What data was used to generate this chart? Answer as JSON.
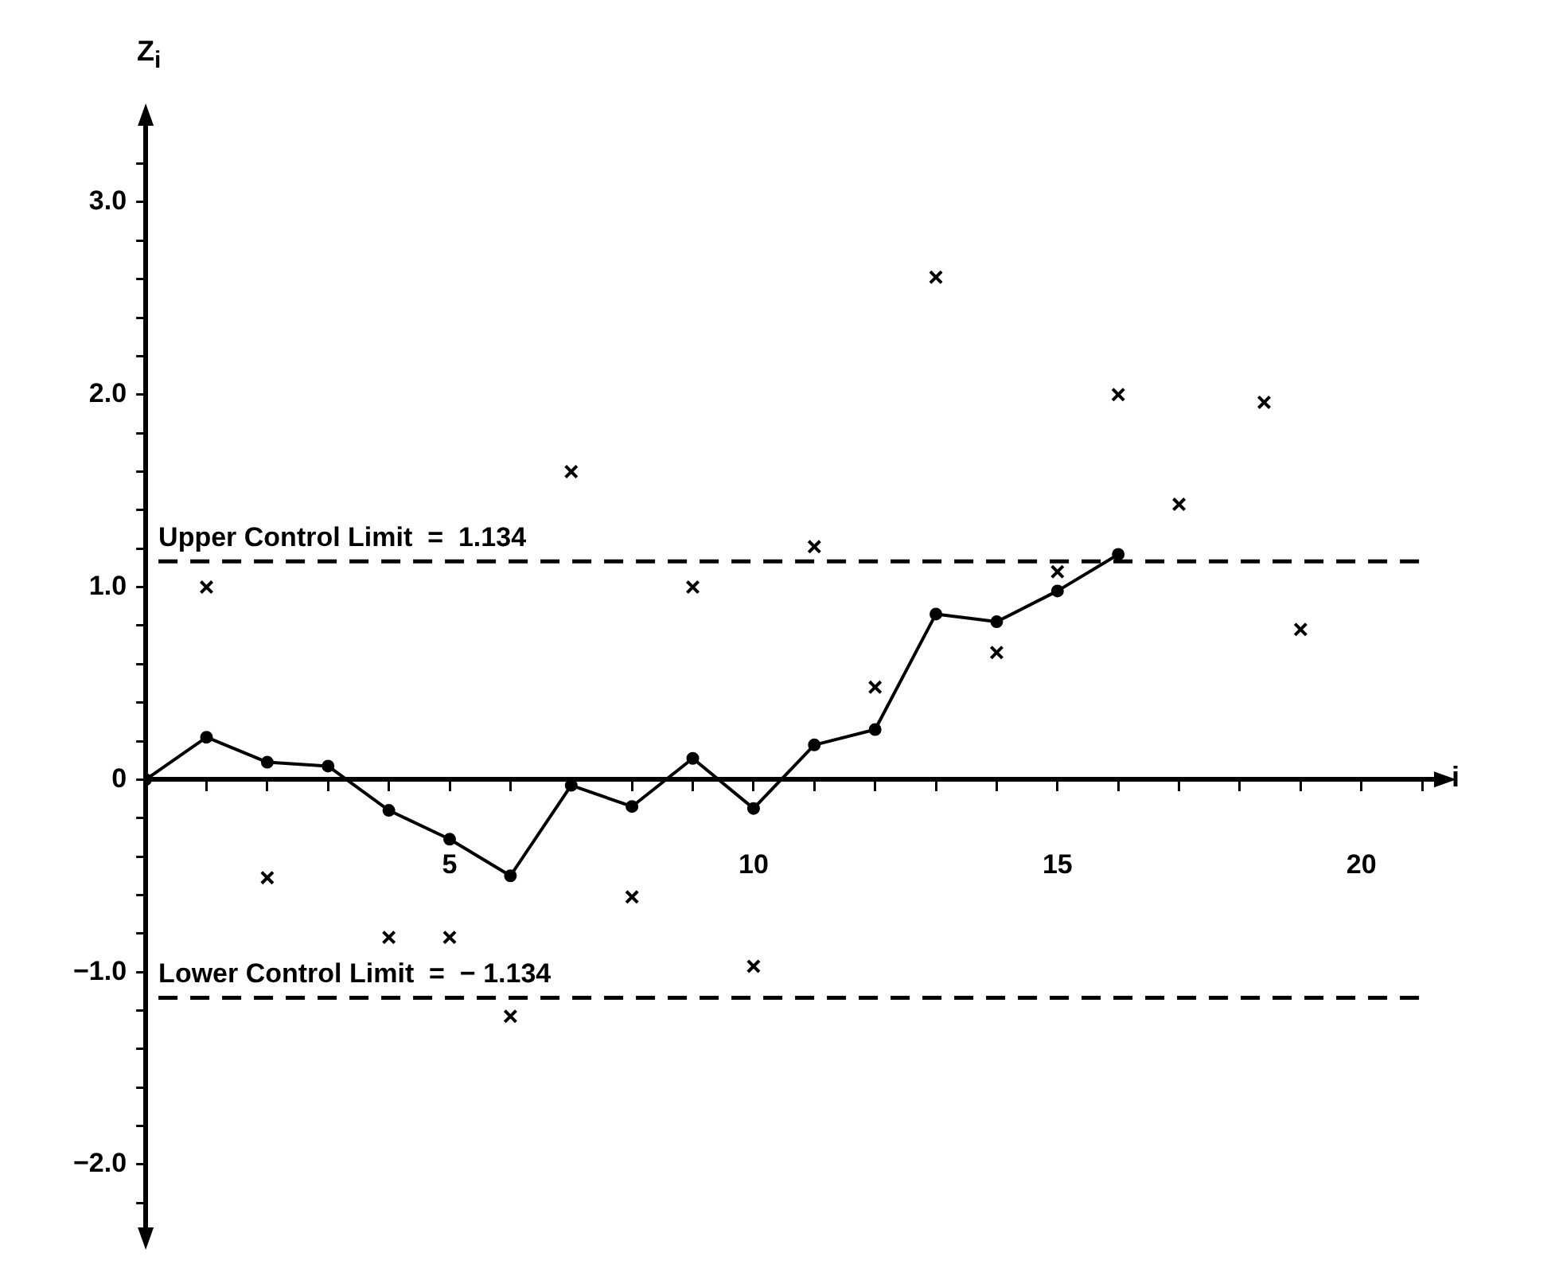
{
  "chart_data": {
    "type": "line",
    "xlabel": "i",
    "ylabel": "Z$_{i}$",
    "xlim": [
      0,
      21.3
    ],
    "ylim": [
      -2.36,
      3.43
    ],
    "xticks": [
      {
        "value": 1,
        "label": null
      },
      {
        "value": 2,
        "label": null
      },
      {
        "value": 3,
        "label": null
      },
      {
        "value": 4,
        "label": null
      },
      5,
      {
        "value": 6,
        "label": null
      },
      {
        "value": 7,
        "label": null
      },
      {
        "value": 8,
        "label": null
      },
      {
        "value": 9,
        "label": null
      },
      10,
      {
        "value": 11,
        "label": null
      },
      {
        "value": 12,
        "label": null
      },
      {
        "value": 13,
        "label": null
      },
      {
        "value": 14,
        "label": null
      },
      15,
      {
        "value": 16,
        "label": null
      },
      {
        "value": 17,
        "label": null
      },
      {
        "value": 18,
        "label": null
      },
      {
        "value": 19,
        "label": null
      },
      20,
      {
        "value": 21,
        "label": null
      }
    ],
    "yticks": [
      {
        "value": -2.2,
        "label": null
      },
      {
        "value": -2,
        "label": "−2.0"
      },
      {
        "value": -1.8,
        "label": null
      },
      {
        "value": -1.6,
        "label": null
      },
      {
        "value": -1.4,
        "label": null
      },
      {
        "value": -1.2,
        "label": null
      },
      {
        "value": -1,
        "label": "−1.0"
      },
      {
        "value": -0.8,
        "label": null
      },
      {
        "value": -0.6,
        "label": null
      },
      {
        "value": -0.4,
        "label": null
      },
      {
        "value": -0.2,
        "label": null
      },
      0,
      {
        "value": 0.2,
        "label": null
      },
      {
        "value": 0.4,
        "label": null
      },
      {
        "value": 0.6,
        "label": null
      },
      {
        "value": 0.8,
        "label": null
      },
      {
        "value": 1,
        "label": "1.0"
      },
      {
        "value": 1.2,
        "label": null
      },
      {
        "value": 1.4,
        "label": null
      },
      {
        "value": 1.6,
        "label": null
      },
      {
        "value": 1.8,
        "label": null
      },
      {
        "value": 2,
        "label": "2.0"
      },
      {
        "value": 2.2,
        "label": null
      },
      {
        "value": 2.4,
        "label": null
      },
      {
        "value": 2.6,
        "label": null
      },
      {
        "value": 2.8,
        "label": null
      },
      {
        "value": 3,
        "label": "3.0"
      },
      {
        "value": 3.2,
        "label": null
      }
    ],
    "grid": false,
    "legend": false,
    "series": [
      {
        "type": "line",
        "color": "#000000",
        "marker": "circle",
        "x": [
          0,
          1,
          2,
          3,
          4,
          5,
          6,
          7,
          8,
          9,
          10,
          11,
          12,
          13,
          14,
          15,
          16
        ],
        "values": [
          0,
          0.22,
          0.09,
          0.07,
          -0.16,
          -0.31,
          -0.5,
          -0.03,
          -0.14,
          0.11,
          -0.15,
          0.18,
          0.26,
          0.86,
          0.82,
          0.98,
          1.17
        ]
      },
      {
        "type": "scatter",
        "color": "#000000",
        "marker": "cross",
        "x": [
          1,
          2,
          4,
          5,
          6,
          7,
          8,
          9,
          10,
          11,
          12,
          13,
          14,
          15,
          16,
          17,
          18.4,
          19
        ],
        "values": [
          1.0,
          -0.51,
          -0.82,
          -0.82,
          -1.23,
          1.6,
          -0.61,
          1.0,
          -0.97,
          1.21,
          0.48,
          2.61,
          0.66,
          1.08,
          2.0,
          1.43,
          1.96,
          0.78
        ]
      }
    ],
    "ref_lines": [
      {
        "axis": "y",
        "value": 1.134,
        "label": "Upper Control Limit  =  1.134",
        "line_style": "dashed",
        "color": "#000000"
      },
      {
        "axis": "y",
        "value": -1.134,
        "label": "Lower Control Limit  =  − 1.134",
        "line_style": "dashed",
        "color": "#000000"
      }
    ]
  }
}
